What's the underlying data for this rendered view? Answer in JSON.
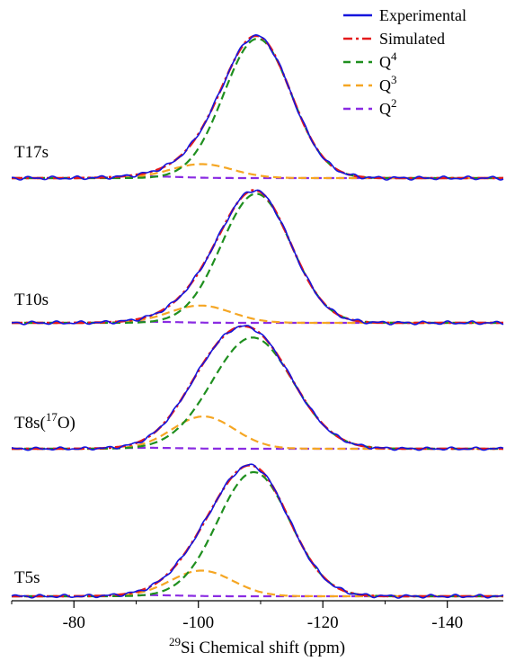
{
  "chart_data": {
    "type": "line",
    "xlabel": "Si Chemical shift (ppm)",
    "xlabel_superscript": "29",
    "x_direction": "reversed",
    "xlim": [
      -70,
      -149
    ],
    "xticks": [
      "-80",
      "-100",
      "-120",
      "-140"
    ],
    "grid": false,
    "legend_position": "top-right",
    "legend": [
      {
        "name": "Experimental",
        "superscript": "",
        "color": "#1515dd",
        "style": "solid"
      },
      {
        "name": "Simulated",
        "superscript": "",
        "color": "#e41a1c",
        "style": "dash-dot"
      },
      {
        "name": "Q",
        "superscript": "4",
        "color": "#1f8f1f",
        "style": "dashed"
      },
      {
        "name": "Q",
        "superscript": "3",
        "color": "#f5a623",
        "style": "dashed"
      },
      {
        "name": "Q",
        "superscript": "2",
        "color": "#8a2be2",
        "style": "dashed"
      }
    ],
    "panels": [
      {
        "label": "T17s",
        "label_superscript": "",
        "label_suffix": "",
        "components": [
          {
            "series": "Q4",
            "center": -109.5,
            "height": 1.0,
            "width": 5.4
          },
          {
            "series": "Q3",
            "center": -100.5,
            "height": 0.1,
            "width": 5.0
          },
          {
            "series": "Q2",
            "center": -92.0,
            "height": 0.012,
            "width": 5.0
          }
        ]
      },
      {
        "label": "T10s",
        "label_superscript": "",
        "label_suffix": "",
        "components": [
          {
            "series": "Q4",
            "center": -109.3,
            "height": 0.97,
            "width": 5.6
          },
          {
            "series": "Q3",
            "center": -100.3,
            "height": 0.13,
            "width": 5.0
          },
          {
            "series": "Q2",
            "center": -92.0,
            "height": 0.008,
            "width": 5.0
          }
        ]
      },
      {
        "label": "T8s(",
        "label_superscript": "17",
        "label_suffix": "O)",
        "components": [
          {
            "series": "Q4",
            "center": -108.7,
            "height": 0.93,
            "width": 6.5
          },
          {
            "series": "Q3",
            "center": -100.8,
            "height": 0.27,
            "width": 5.0
          },
          {
            "series": "Q2",
            "center": -92.0,
            "height": 0.008,
            "width": 5.0
          }
        ]
      },
      {
        "label": "T5s",
        "label_superscript": "",
        "label_suffix": "",
        "components": [
          {
            "series": "Q4",
            "center": -108.9,
            "height": 0.92,
            "width": 5.8
          },
          {
            "series": "Q3",
            "center": -100.5,
            "height": 0.19,
            "width": 5.0
          },
          {
            "series": "Q2",
            "center": -92.0,
            "height": 0.008,
            "width": 5.0
          }
        ]
      }
    ]
  }
}
